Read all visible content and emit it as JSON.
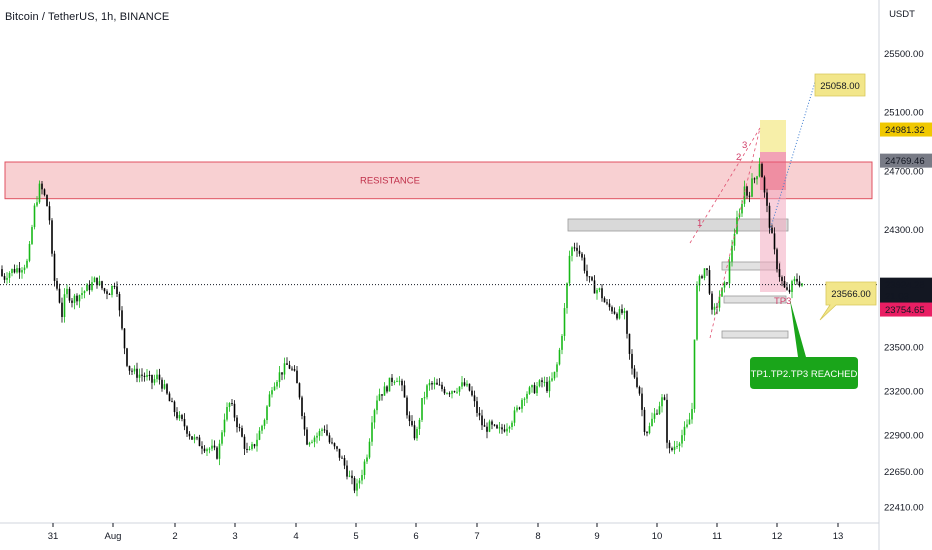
{
  "header": {
    "title": "Bitcoin / TetherUS, 1h, BINANCE"
  },
  "colors": {
    "up": "#18b818",
    "down": "#000000",
    "resistance_fill": "#f8d0d2",
    "resistance_line": "#e05060",
    "price_tag": "#131722",
    "tp_tag": "#e91e63",
    "note_fill": "#f2e68a",
    "badge": "#1aa51a"
  },
  "chart_data": {
    "type": "candlestick",
    "y_axis": {
      "unit": "USDT",
      "ylim": [
        22300,
        25830
      ],
      "ticks": [
        "25500.00",
        "25100.00",
        "24700.00",
        "24300.00",
        "23500.00",
        "23200.00",
        "22900.00",
        "22650.00",
        "22410.00"
      ],
      "tick_values": [
        25500,
        25100,
        24700,
        24300,
        23500,
        23200,
        22900,
        22650,
        22410
      ]
    },
    "x_axis": {
      "labels": [
        "31",
        "Aug",
        "2",
        "3",
        "4",
        "5",
        "6",
        "7",
        "8",
        "9",
        "10",
        "11",
        "12",
        "13"
      ]
    },
    "price_path": [
      [
        0,
        24030
      ],
      [
        3,
        23960
      ],
      [
        7,
        24000
      ],
      [
        12,
        24020
      ],
      [
        20,
        24040
      ],
      [
        28,
        24080
      ],
      [
        34,
        24430
      ],
      [
        40,
        24600
      ],
      [
        46,
        24500
      ],
      [
        50,
        24350
      ],
      [
        53,
        23980
      ],
      [
        58,
        23880
      ],
      [
        62,
        23720
      ],
      [
        66,
        23890
      ],
      [
        72,
        23820
      ],
      [
        80,
        23860
      ],
      [
        88,
        23900
      ],
      [
        96,
        23960
      ],
      [
        104,
        23880
      ],
      [
        110,
        23880
      ],
      [
        116,
        23960
      ],
      [
        120,
        23700
      ],
      [
        124,
        23520
      ],
      [
        128,
        23360
      ],
      [
        135,
        23320
      ],
      [
        145,
        23300
      ],
      [
        152,
        23260
      ],
      [
        158,
        23300
      ],
      [
        164,
        23220
      ],
      [
        170,
        23120
      ],
      [
        178,
        23020
      ],
      [
        185,
        22960
      ],
      [
        192,
        22880
      ],
      [
        198,
        22850
      ],
      [
        205,
        22820
      ],
      [
        212,
        22800
      ],
      [
        218,
        22760
      ],
      [
        224,
        23020
      ],
      [
        230,
        23120
      ],
      [
        236,
        23000
      ],
      [
        242,
        22880
      ],
      [
        248,
        22760
      ],
      [
        256,
        22860
      ],
      [
        264,
        23000
      ],
      [
        272,
        23240
      ],
      [
        280,
        23320
      ],
      [
        288,
        23380
      ],
      [
        294,
        23320
      ],
      [
        300,
        23160
      ],
      [
        306,
        22860
      ],
      [
        312,
        22880
      ],
      [
        318,
        22900
      ],
      [
        324,
        22960
      ],
      [
        330,
        22840
      ],
      [
        338,
        22780
      ],
      [
        344,
        22700
      ],
      [
        350,
        22600
      ],
      [
        356,
        22520
      ],
      [
        362,
        22650
      ],
      [
        368,
        22800
      ],
      [
        372,
        23020
      ],
      [
        378,
        23180
      ],
      [
        384,
        23200
      ],
      [
        392,
        23280
      ],
      [
        398,
        23300
      ],
      [
        404,
        23160
      ],
      [
        410,
        22960
      ],
      [
        416,
        22880
      ],
      [
        422,
        23120
      ],
      [
        428,
        23240
      ],
      [
        434,
        23240
      ],
      [
        440,
        23220
      ],
      [
        448,
        23200
      ],
      [
        456,
        23220
      ],
      [
        464,
        23240
      ],
      [
        470,
        23200
      ],
      [
        478,
        23040
      ],
      [
        484,
        22940
      ],
      [
        490,
        22960
      ],
      [
        498,
        22920
      ],
      [
        506,
        22960
      ],
      [
        512,
        23010
      ],
      [
        518,
        23080
      ],
      [
        524,
        23180
      ],
      [
        530,
        23200
      ],
      [
        536,
        23220
      ],
      [
        542,
        23260
      ],
      [
        548,
        23220
      ],
      [
        554,
        23300
      ],
      [
        558,
        23400
      ],
      [
        562,
        23600
      ],
      [
        566,
        23840
      ],
      [
        570,
        24160
      ],
      [
        576,
        24200
      ],
      [
        582,
        24100
      ],
      [
        588,
        23960
      ],
      [
        594,
        23900
      ],
      [
        600,
        23880
      ],
      [
        606,
        23780
      ],
      [
        612,
        23760
      ],
      [
        618,
        23720
      ],
      [
        624,
        23740
      ],
      [
        628,
        23500
      ],
      [
        632,
        23340
      ],
      [
        636,
        23280
      ],
      [
        640,
        23180
      ],
      [
        644,
        22960
      ],
      [
        648,
        22920
      ],
      [
        652,
        23000
      ],
      [
        656,
        23060
      ],
      [
        660,
        23120
      ],
      [
        664,
        23160
      ],
      [
        668,
        22780
      ],
      [
        672,
        22800
      ],
      [
        676,
        22840
      ],
      [
        680,
        22880
      ],
      [
        684,
        22920
      ],
      [
        688,
        22960
      ],
      [
        692,
        23080
      ],
      [
        696,
        23880
      ],
      [
        700,
        23960
      ],
      [
        704,
        24040
      ],
      [
        708,
        24000
      ],
      [
        712,
        23720
      ],
      [
        716,
        23760
      ],
      [
        720,
        23860
      ],
      [
        724,
        23900
      ],
      [
        728,
        23980
      ],
      [
        732,
        24200
      ],
      [
        736,
        24340
      ],
      [
        740,
        24400
      ],
      [
        744,
        24600
      ],
      [
        748,
        24520
      ],
      [
        752,
        24620
      ],
      [
        756,
        24660
      ],
      [
        760,
        24780
      ],
      [
        764,
        24560
      ],
      [
        768,
        24400
      ],
      [
        772,
        24240
      ],
      [
        776,
        24080
      ],
      [
        780,
        23980
      ],
      [
        784,
        23900
      ],
      [
        788,
        23860
      ],
      [
        792,
        23920
      ],
      [
        796,
        23960
      ],
      [
        800,
        23940
      ],
      [
        804,
        23930
      ]
    ],
    "levels": {
      "resistance": {
        "label": "RESISTANCE",
        "low": 24510,
        "high": 24760
      },
      "last_price": 23924.28,
      "countdown": "21:03",
      "tp_price": 23754.65,
      "high_tag": 24981.32,
      "mid_tag": 24769.46,
      "target_note": "25058.00",
      "tp_note": "23566.00",
      "tp_label": "TP3",
      "wave_labels": [
        "1",
        "2",
        "3"
      ]
    },
    "annotation": "TP1.TP2.TP3 REACHED"
  }
}
